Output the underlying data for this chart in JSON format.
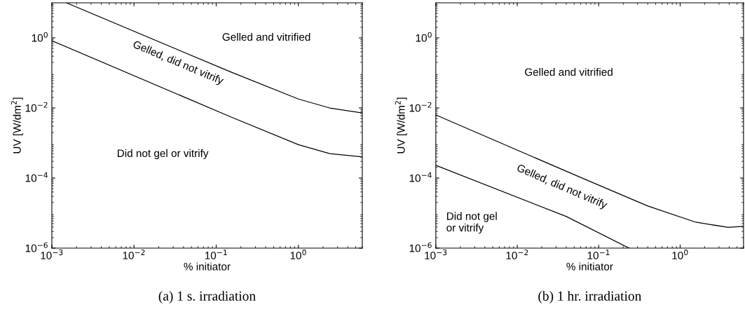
{
  "chart_data": [
    {
      "type": "line",
      "xlabel": "% initiator",
      "ylabel": "UV [W/dm$^{2}$]",
      "log": "xy",
      "grid": false,
      "marker": "none",
      "line_style": "solid",
      "xlim": [
        0.001,
        6
      ],
      "ylim": [
        1e-06,
        10
      ],
      "xticks": [
        {
          "value": 0.001,
          "label": "10$^{−3}$"
        },
        {
          "value": 0.01,
          "label": "10$^{−2}$"
        },
        {
          "value": 0.1,
          "label": "10$^{−1}$"
        },
        {
          "value": 1,
          "label": "10$^{0}$"
        }
      ],
      "yticks": [
        {
          "value": 1e-06,
          "label": "10$^{−6}$"
        },
        {
          "value": 0.0001,
          "label": "10$^{−4}$"
        },
        {
          "value": 0.01,
          "label": "10$^{−2}$"
        },
        {
          "value": 1,
          "label": "10$^{0}$"
        }
      ],
      "series": [
        {
          "color": "#000000",
          "x": [
            0.0015,
            0.152,
            1,
            2.4,
            6
          ],
          "values": [
            10,
            0.105,
            0.018,
            0.01,
            0.0072
          ]
        },
        {
          "color": "#000000",
          "x": [
            0.001,
            0.152,
            1,
            2.4,
            6
          ],
          "values": [
            0.83,
            0.0055,
            0.0009,
            0.0005,
            0.0004
          ]
        }
      ],
      "annotations": [
        "Gelled and vitrified",
        "Gelled, did not vitrify",
        "Did not gel or vitrify",
        "(a) 1 s. irradiation"
      ]
    },
    {
      "type": "line",
      "xlabel": "% initiator",
      "ylabel": "UV [W/dm$^{2}$]",
      "log": "xy",
      "grid": false,
      "marker": "none",
      "line_style": "solid",
      "xlim": [
        0.001,
        6
      ],
      "ylim": [
        1e-06,
        10
      ],
      "xticks": [
        {
          "value": 0.001,
          "label": "10$^{−3}$"
        },
        {
          "value": 0.01,
          "label": "10$^{−2}$"
        },
        {
          "value": 0.1,
          "label": "10$^{−1}$"
        },
        {
          "value": 1,
          "label": "10$^{0}$"
        }
      ],
      "yticks": [
        {
          "value": 1e-06,
          "label": "10$^{−6}$"
        },
        {
          "value": 0.0001,
          "label": "10$^{−4}$"
        },
        {
          "value": 0.01,
          "label": "10$^{−2}$"
        },
        {
          "value": 1,
          "label": "10$^{0}$"
        }
      ],
      "series": [
        {
          "color": "#000000",
          "x": [
            0.001,
            0.065,
            0.4,
            1.55,
            3.9,
            6
          ],
          "values": [
            0.0063,
            9.6e-05,
            1.6e-05,
            5.5e-06,
            3.9e-06,
            4.2e-06
          ]
        },
        {
          "color": "#000000",
          "x": [
            0.001,
            0.04,
            0.236
          ],
          "values": [
            0.00023,
            8e-06,
            1e-06
          ]
        }
      ],
      "annotations": [
        "Gelled and vitrified",
        "Gelled, did not vitrify",
        "Did not gel\nor vitrify",
        "(b) 1 hr. irradiation"
      ]
    }
  ]
}
